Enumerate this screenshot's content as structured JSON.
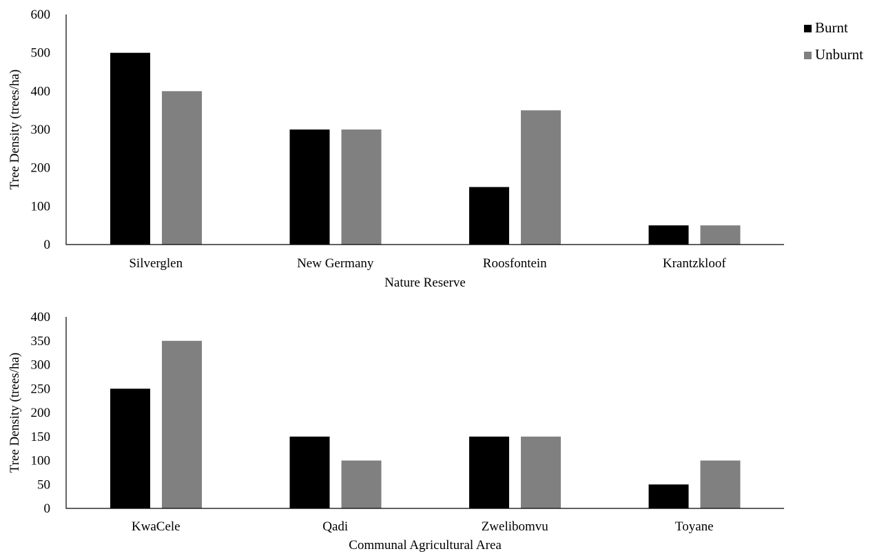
{
  "legend": {
    "items": [
      {
        "name": "Burnt",
        "color": "#000000"
      },
      {
        "name": "Unburnt",
        "color": "#808080"
      }
    ]
  },
  "chart_data": [
    {
      "type": "bar",
      "title": "",
      "xlabel": "Nature Reserve",
      "ylabel": "Tree Density (trees/ha)",
      "ylim": [
        0,
        600
      ],
      "yticks": [
        0,
        100,
        200,
        300,
        400,
        500,
        600
      ],
      "categories": [
        "Silverglen",
        "New Germany",
        "Roosfontein",
        "Krantzkloof"
      ],
      "series": [
        {
          "name": "Burnt",
          "color": "#000000",
          "values": [
            500,
            300,
            150,
            50
          ]
        },
        {
          "name": "Unburnt",
          "color": "#808080",
          "values": [
            400,
            300,
            350,
            50
          ]
        }
      ],
      "grid": false,
      "legend_position": "top-right"
    },
    {
      "type": "bar",
      "title": "",
      "xlabel": "Communal Agricultural Area",
      "ylabel": "Tree Density (trees/ha)",
      "ylim": [
        0,
        400
      ],
      "yticks": [
        0,
        50,
        100,
        150,
        200,
        250,
        300,
        350,
        400
      ],
      "categories": [
        "KwaCele",
        "Qadi",
        "Zwelibomvu",
        "Toyane"
      ],
      "series": [
        {
          "name": "Burnt",
          "color": "#000000",
          "values": [
            250,
            150,
            150,
            50
          ]
        },
        {
          "name": "Unburnt",
          "color": "#808080",
          "values": [
            350,
            100,
            150,
            100
          ]
        }
      ],
      "grid": false
    }
  ]
}
